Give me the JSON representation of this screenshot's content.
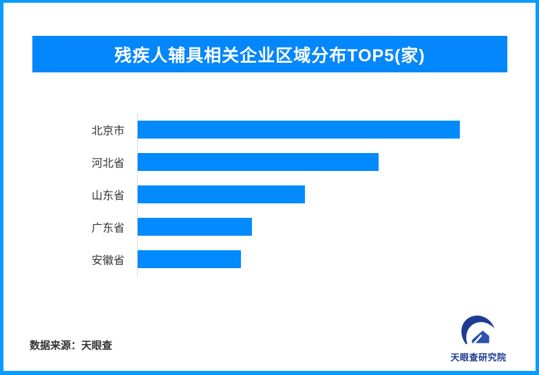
{
  "header": {
    "title": "残疾人辅具相关企业区域分布TOP5(家)"
  },
  "chart_data": {
    "type": "bar",
    "orientation": "horizontal",
    "title": "残疾人辅具相关企业区域分布TOP5(家)",
    "categories": [
      "北京市",
      "河北省",
      "山东省",
      "广东省",
      "安徽省"
    ],
    "values": [
      468,
      350,
      243,
      166,
      150
    ],
    "value_unit": "relative bar length (px)",
    "note": "no numeric value labels, ticks or gridlines are shown in the chart; values are relative bar lengths with 北京市 longest",
    "xlabel": "",
    "ylabel": "",
    "grid": false,
    "legend": false
  },
  "footer": {
    "source_text": "数据来源：天眼查",
    "logo_text": "天眼查研究院"
  },
  "colors": {
    "border": "#0a9bff",
    "banner": "#0487fb",
    "title": "#ffffff",
    "bar": "#038afd",
    "axis": "#d9d9d9",
    "label": "#333333",
    "source": "#333333",
    "logo-dark": "#1e3a93",
    "logo-mid": "#2d52ae"
  }
}
